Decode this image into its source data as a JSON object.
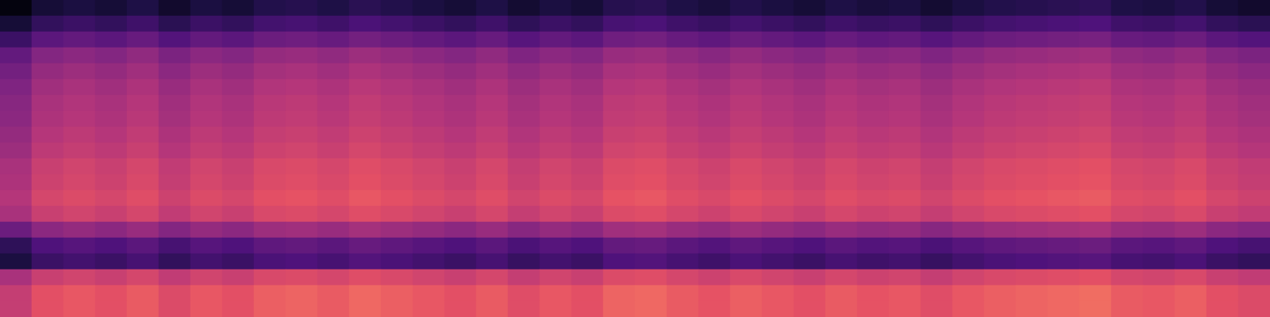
{
  "chart_data": {
    "type": "heatmap",
    "tick_labels": false,
    "grid": false,
    "color_range": [
      0,
      100
    ],
    "cells": [
      [
        2,
        10,
        12,
        10,
        13,
        8,
        12,
        10,
        14,
        15,
        13,
        16,
        14,
        12,
        10,
        13,
        9,
        12,
        10,
        15,
        16,
        13,
        11,
        14,
        12,
        10,
        13,
        11,
        12,
        9,
        12,
        14,
        15,
        16,
        17,
        13,
        12,
        14,
        10,
        8
      ],
      [
        10,
        18,
        20,
        18,
        21,
        16,
        20,
        18,
        22,
        23,
        21,
        24,
        22,
        20,
        18,
        21,
        17,
        20,
        18,
        23,
        24,
        21,
        19,
        22,
        20,
        18,
        21,
        19,
        20,
        17,
        20,
        22,
        23,
        24,
        25,
        21,
        20,
        22,
        18,
        16
      ],
      [
        20,
        28,
        30,
        28,
        31,
        26,
        30,
        28,
        32,
        33,
        31,
        34,
        32,
        30,
        28,
        31,
        27,
        30,
        28,
        33,
        34,
        31,
        29,
        32,
        30,
        28,
        31,
        29,
        30,
        27,
        30,
        32,
        33,
        34,
        35,
        31,
        30,
        32,
        28,
        26
      ],
      [
        30,
        38,
        40,
        38,
        41,
        36,
        40,
        38,
        42,
        43,
        41,
        44,
        42,
        40,
        38,
        41,
        37,
        40,
        38,
        43,
        44,
        41,
        39,
        42,
        40,
        38,
        41,
        39,
        40,
        37,
        40,
        42,
        43,
        44,
        45,
        41,
        40,
        42,
        38,
        36
      ],
      [
        34,
        42,
        44,
        42,
        45,
        40,
        44,
        42,
        46,
        47,
        45,
        48,
        46,
        44,
        42,
        45,
        41,
        44,
        42,
        47,
        48,
        45,
        43,
        46,
        44,
        42,
        45,
        43,
        44,
        41,
        44,
        46,
        47,
        48,
        49,
        45,
        44,
        46,
        42,
        40
      ],
      [
        37,
        45,
        47,
        45,
        48,
        43,
        47,
        45,
        49,
        50,
        48,
        51,
        49,
        47,
        45,
        48,
        44,
        47,
        45,
        50,
        51,
        48,
        46,
        49,
        47,
        45,
        48,
        46,
        47,
        44,
        47,
        49,
        50,
        51,
        52,
        48,
        47,
        49,
        45,
        43
      ],
      [
        39,
        47,
        49,
        47,
        50,
        45,
        49,
        47,
        51,
        52,
        50,
        53,
        51,
        49,
        47,
        50,
        46,
        49,
        47,
        52,
        53,
        50,
        48,
        51,
        49,
        47,
        50,
        48,
        49,
        46,
        49,
        51,
        52,
        53,
        54,
        50,
        49,
        51,
        47,
        45
      ],
      [
        40,
        48,
        50,
        48,
        51,
        46,
        50,
        48,
        52,
        53,
        51,
        54,
        52,
        50,
        48,
        51,
        47,
        50,
        48,
        53,
        54,
        51,
        49,
        52,
        50,
        48,
        51,
        49,
        50,
        47,
        50,
        52,
        53,
        54,
        55,
        51,
        50,
        52,
        48,
        46
      ],
      [
        42,
        50,
        52,
        50,
        53,
        48,
        52,
        50,
        54,
        55,
        53,
        56,
        54,
        52,
        50,
        53,
        49,
        52,
        50,
        55,
        56,
        53,
        51,
        54,
        52,
        50,
        53,
        51,
        52,
        49,
        52,
        54,
        55,
        56,
        57,
        53,
        52,
        54,
        50,
        48
      ],
      [
        44,
        52,
        54,
        52,
        55,
        50,
        54,
        52,
        56,
        57,
        55,
        58,
        56,
        54,
        52,
        55,
        51,
        54,
        52,
        57,
        58,
        55,
        53,
        56,
        54,
        52,
        55,
        53,
        54,
        51,
        54,
        56,
        57,
        58,
        59,
        55,
        54,
        56,
        52,
        50
      ],
      [
        47,
        55,
        57,
        55,
        58,
        53,
        57,
        55,
        59,
        60,
        58,
        61,
        59,
        57,
        55,
        58,
        54,
        57,
        55,
        60,
        61,
        58,
        56,
        59,
        57,
        55,
        58,
        56,
        57,
        54,
        57,
        59,
        60,
        61,
        62,
        58,
        57,
        59,
        55,
        53
      ],
      [
        48,
        56,
        58,
        56,
        59,
        54,
        58,
        56,
        60,
        61,
        59,
        62,
        60,
        58,
        56,
        59,
        55,
        58,
        56,
        61,
        62,
        59,
        57,
        60,
        58,
        56,
        59,
        57,
        58,
        55,
        58,
        60,
        61,
        62,
        63,
        59,
        58,
        60,
        56,
        54
      ],
      [
        50,
        58,
        60,
        58,
        61,
        56,
        60,
        58,
        62,
        63,
        61,
        64,
        62,
        60,
        58,
        61,
        57,
        60,
        58,
        63,
        64,
        61,
        59,
        62,
        60,
        58,
        61,
        59,
        60,
        57,
        60,
        62,
        63,
        64,
        65,
        61,
        60,
        62,
        58,
        56
      ],
      [
        47,
        55,
        57,
        55,
        58,
        53,
        57,
        55,
        59,
        60,
        58,
        61,
        59,
        57,
        55,
        58,
        54,
        57,
        55,
        60,
        61,
        58,
        56,
        59,
        57,
        55,
        58,
        56,
        57,
        54,
        57,
        59,
        60,
        61,
        62,
        58,
        57,
        59,
        55,
        53
      ],
      [
        32,
        40,
        42,
        40,
        43,
        38,
        42,
        40,
        44,
        45,
        43,
        46,
        44,
        42,
        40,
        43,
        39,
        42,
        40,
        45,
        46,
        43,
        41,
        44,
        42,
        40,
        43,
        41,
        42,
        39,
        42,
        44,
        45,
        46,
        47,
        43,
        42,
        44,
        40,
        38
      ],
      [
        17,
        25,
        27,
        25,
        28,
        23,
        27,
        25,
        29,
        30,
        28,
        31,
        29,
        27,
        25,
        28,
        24,
        27,
        25,
        30,
        31,
        28,
        26,
        29,
        27,
        25,
        28,
        26,
        27,
        24,
        27,
        29,
        30,
        31,
        32,
        28,
        27,
        29,
        25,
        23
      ],
      [
        12,
        20,
        22,
        20,
        23,
        18,
        22,
        20,
        24,
        25,
        23,
        26,
        24,
        22,
        20,
        23,
        19,
        22,
        20,
        25,
        26,
        23,
        21,
        24,
        22,
        20,
        23,
        21,
        22,
        19,
        22,
        24,
        25,
        26,
        27,
        23,
        22,
        24,
        20,
        18
      ],
      [
        47,
        55,
        57,
        55,
        58,
        53,
        57,
        55,
        59,
        60,
        58,
        61,
        59,
        57,
        55,
        58,
        54,
        57,
        55,
        60,
        61,
        58,
        56,
        59,
        57,
        55,
        58,
        56,
        57,
        54,
        57,
        59,
        60,
        61,
        62,
        58,
        57,
        59,
        55,
        53
      ],
      [
        54,
        62,
        64,
        62,
        65,
        60,
        64,
        62,
        66,
        67,
        65,
        68,
        66,
        64,
        62,
        65,
        61,
        64,
        62,
        67,
        68,
        65,
        63,
        66,
        64,
        62,
        65,
        63,
        64,
        61,
        64,
        66,
        67,
        68,
        69,
        65,
        64,
        66,
        62,
        60
      ],
      [
        54,
        62,
        64,
        62,
        65,
        60,
        64,
        62,
        66,
        67,
        65,
        68,
        66,
        64,
        62,
        65,
        61,
        64,
        62,
        67,
        68,
        65,
        63,
        66,
        64,
        62,
        65,
        63,
        64,
        61,
        64,
        66,
        67,
        68,
        69,
        65,
        64,
        66,
        62,
        60
      ]
    ]
  }
}
